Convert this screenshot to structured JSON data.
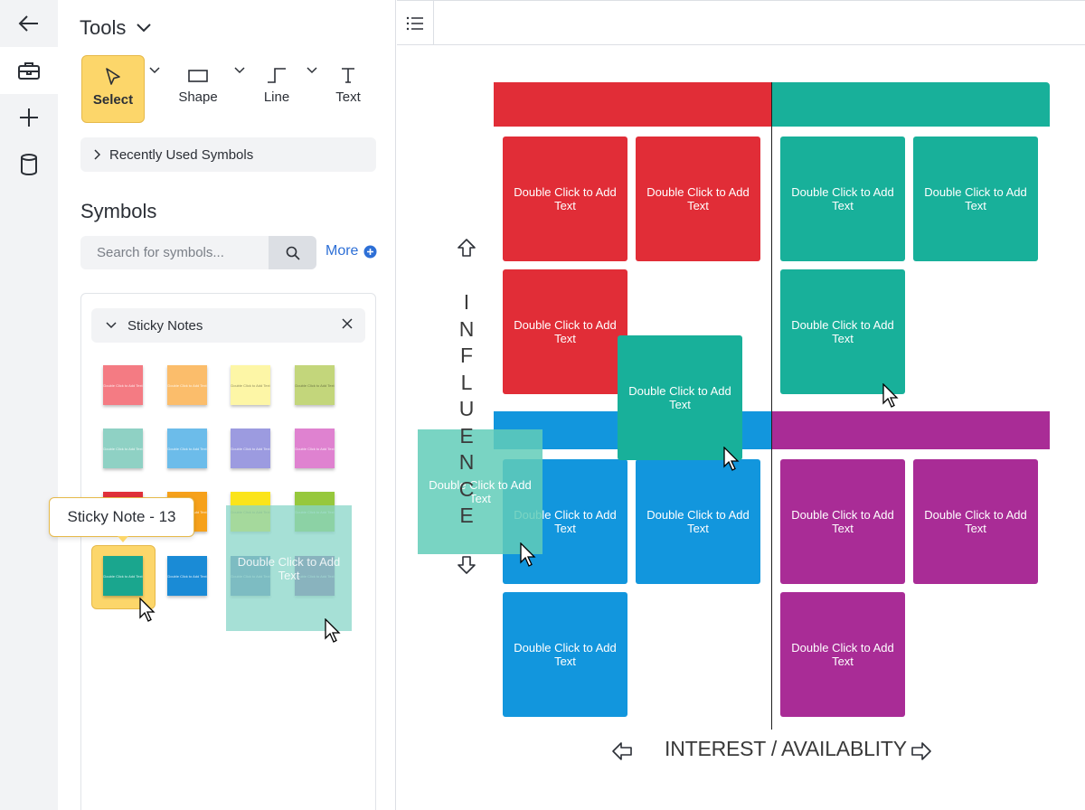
{
  "rail": {
    "items": [
      {
        "name": "back-arrow-icon"
      },
      {
        "name": "toolbox-icon"
      },
      {
        "name": "plus-icon"
      },
      {
        "name": "database-icon"
      }
    ]
  },
  "panel": {
    "title": "Tools",
    "tools": {
      "select": "Select",
      "shape": "Shape",
      "line": "Line",
      "text": "Text"
    },
    "recent": "Recently Used Symbols",
    "symbols_title": "Symbols",
    "search_placeholder": "Search for symbols...",
    "more": "More",
    "library": {
      "title": "Sticky Notes",
      "tooltip": "Sticky Note - 13",
      "note_text": "Double Click to Add Text",
      "swatches": [
        "#f47b83",
        "#fbbd6b",
        "#fdf6a6",
        "#c3d67b",
        "#8fd1c4",
        "#6cbcea",
        "#9c9be0",
        "#df82d0",
        "#e0303a",
        "#f6a11a",
        "#fbe41a",
        "#96c83c",
        "#1aa68e",
        "#1a8bd6",
        "#5e6fb0",
        "#8a4c9e"
      ]
    }
  },
  "canvas": {
    "note_text": "Double Click to Add Text",
    "colors": {
      "red": "#e12d37",
      "teal": "#18b09a",
      "blue": "#1296dd",
      "purple": "#a92c96"
    },
    "y_axis": [
      "I",
      "N",
      "F",
      "L",
      "U",
      "E",
      "N",
      "C",
      "E"
    ],
    "x_axis": "INTEREST / AVAILABLITY"
  }
}
